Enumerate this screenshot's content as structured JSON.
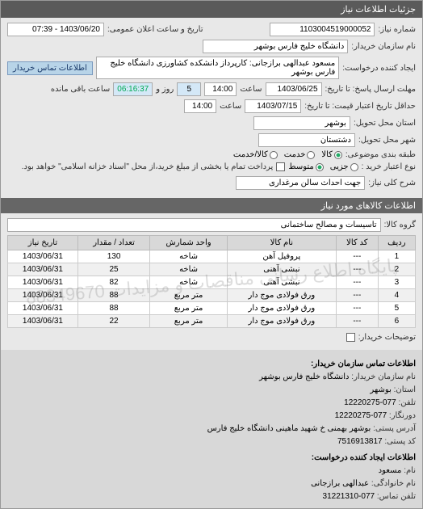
{
  "header": {
    "title": "جزئیات اطلاعات نیاز"
  },
  "form": {
    "request_no_label": "شماره نیاز:",
    "request_no": "1103004519000052",
    "public_datetime_label": "تاریخ و ساعت اعلان عمومی:",
    "public_datetime": "1403/06/20 - 07:39",
    "buyer_label": "نام سازمان خریدار:",
    "buyer": "دانشگاه خلیج فارس بوشهر",
    "requester_label": "ایجاد کننده درخواست:",
    "requester": "مسعود عبدالهی برازجانی: کارپرداز دانشکده کشاورزی دانشگاه خلیج فارس بوشهر",
    "buyer_contact_btn": "اطلاعات تماس خریدار",
    "deadline_reply_label": "مهلت ارسال پاسخ: تا تاریخ:",
    "deadline_reply_date": "1403/06/25",
    "deadline_reply_time_label": "ساعت",
    "deadline_reply_time": "14:00",
    "days_remaining": "5",
    "days_remaining_label": "روز و",
    "time_remaining": "06:16:37",
    "time_remaining_label": "ساعت باقی مانده",
    "validity_label": "حداقل تاریخ اعتبار قیمت: تا تاریخ:",
    "validity_date": "1403/07/15",
    "validity_time_label": "ساعت",
    "validity_time": "14:00",
    "province_label": "استان محل تحویل:",
    "province": "بوشهر",
    "city_label": "شهر محل تحویل:",
    "city": "دشتستان",
    "scope_label": "طبقه بندی موضوعی:",
    "scope_options": [
      "کالا",
      "خدمت",
      "کالا/خدمت"
    ],
    "scope_selected": 0,
    "purchase_type_label": "نوع اعتبار خرید :",
    "purchase_type_options": [
      "جزیی",
      "متوسط"
    ],
    "purchase_type_selected": 1,
    "payment_note_label": "پرداخت تمام یا بخشی از مبلغ خرید،از محل \"اسناد خزانه اسلامی\" خواهد بود.",
    "subject_label": "شرح کلی نیاز:",
    "subject": "جهت احداث سالن مرغداری"
  },
  "items_section": {
    "title": "اطلاعات کالاهای مورد نیاز"
  },
  "group": {
    "label": "گروه کالا:",
    "value": "تاسیسات و مصالح ساختمانی"
  },
  "table": {
    "columns": [
      "ردیف",
      "کد کالا",
      "نام کالا",
      "واحد شمارش",
      "تعداد / مقدار",
      "تاریخ نیاز"
    ],
    "rows": [
      [
        "1",
        "---",
        "پروفیل آهن",
        "شاخه",
        "130",
        "1403/06/31"
      ],
      [
        "2",
        "---",
        "نبشی آهنی",
        "شاخه",
        "25",
        "1403/06/31"
      ],
      [
        "3",
        "---",
        "نبشی آهنی",
        "شاخه",
        "82",
        "1403/06/31"
      ],
      [
        "4",
        "---",
        "ورق فولادی موج دار",
        "متر مربع",
        "88",
        "1403/06/31"
      ],
      [
        "5",
        "---",
        "ورق فولادی موج دار",
        "متر مربع",
        "88",
        "1403/06/31"
      ],
      [
        "6",
        "---",
        "ورق فولادی موج دار",
        "متر مربع",
        "22",
        "1403/06/31"
      ]
    ],
    "watermark": "پایگاه اطلاع رسانی مناقصات و مزایدات 88349670"
  },
  "buyer_notes": {
    "label": "توضیحات خریدار:"
  },
  "contact": {
    "org_title": "اطلاعات تماس سازمان خریدار:",
    "org_name_label": "نام سازمان خریدار:",
    "org_name": "دانشگاه خلیج فارس بوشهر",
    "province_label": "استان:",
    "province": "بوشهر",
    "phone_label": "تلفن:",
    "phone": "077-12220275",
    "fax_label": "دورنگار:",
    "fax": "077-12220275",
    "address_label": "آدرس پستی:",
    "address": "بوشهر بهمنی خ شهید ماهینی دانشگاه خلیج فارس",
    "postal_label": "کد پستی:",
    "postal": "7516913817",
    "requester_title": "اطلاعات ایجاد کننده درخواست:",
    "name_label": "نام:",
    "name": "مسعود",
    "lastname_label": "نام خانوادگی:",
    "lastname": "عبدالهی برازجانی",
    "tel_label": "تلفن تماس:",
    "tel": "077-31221310"
  }
}
